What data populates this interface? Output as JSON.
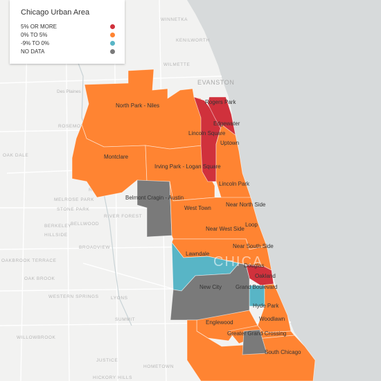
{
  "legend": {
    "title": "Chicago Urban Area",
    "items": [
      {
        "label": "5% OR MORE",
        "color": "#d0313c"
      },
      {
        "label": "0% TO 5%",
        "color": "#ff8432"
      },
      {
        "label": "-9% TO 0%",
        "color": "#58b5c6"
      },
      {
        "label": "NO DATA",
        "color": "#7a7a7a"
      }
    ]
  },
  "map": {
    "lake_color": "#d7dadb",
    "land_color": "#f2f2f1",
    "watermark": "CHICA",
    "reference_labels": [
      "WINNETKA",
      "KENILWORTH",
      "WILMETTE",
      "EVANSTON",
      "Des Plaines",
      "ROSEMONT",
      "OAK DALE",
      "RIVER GR",
      "MELROSE PARK",
      "STONE PARK",
      "BERKELEY",
      "HILLSIDE",
      "BELLWOOD",
      "RIVER FOREST",
      "BROADVIEW",
      "OAKBROOK TERRACE",
      "OAK BROOK",
      "WESTERN SPRINGS",
      "WILLOWBROOK",
      "SUMMIT",
      "HOMETOWN",
      "JUSTICE",
      "HICKORY HILLS",
      "LYONS"
    ],
    "neighborhoods": [
      {
        "name": "Rogers Park",
        "bucket": "5% OR MORE"
      },
      {
        "name": "Edgewater",
        "bucket": "5% OR MORE"
      },
      {
        "name": "Lincoln Square",
        "bucket": "5% OR MORE"
      },
      {
        "name": "Uptown",
        "bucket": "0% TO 5%"
      },
      {
        "name": "North Park - Niles",
        "bucket": "0% TO 5%"
      },
      {
        "name": "Montclare",
        "bucket": "0% TO 5%"
      },
      {
        "name": "Irving Park - Logan Square",
        "bucket": "0% TO 5%"
      },
      {
        "name": "Lincoln Park",
        "bucket": "0% TO 5%"
      },
      {
        "name": "Belmont Cragin - Austin",
        "bucket": "NO DATA"
      },
      {
        "name": "Near North Side",
        "bucket": "0% TO 5%"
      },
      {
        "name": "West Town",
        "bucket": "0% TO 5%"
      },
      {
        "name": "Loop",
        "bucket": "0% TO 5%"
      },
      {
        "name": "Near West Side",
        "bucket": "0% TO 5%"
      },
      {
        "name": "Near South Side",
        "bucket": "0% TO 5%"
      },
      {
        "name": "Lawndale",
        "bucket": "-9% TO 0%"
      },
      {
        "name": "Douglas",
        "bucket": "5% OR MORE"
      },
      {
        "name": "Oakland",
        "bucket": "5% OR MORE"
      },
      {
        "name": "New City",
        "bucket": "NO DATA"
      },
      {
        "name": "Grand Boulevard",
        "bucket": "-9% TO 0%"
      },
      {
        "name": "Hyde Park",
        "bucket": "0% TO 5%"
      },
      {
        "name": "Englewood",
        "bucket": "0% TO 5%"
      },
      {
        "name": "Woodlawn",
        "bucket": "0% TO 5%"
      },
      {
        "name": "Greater Grand Crossing",
        "bucket": "0% TO 5%"
      },
      {
        "name": "South Chicago",
        "bucket": "0% TO 5%"
      }
    ]
  }
}
